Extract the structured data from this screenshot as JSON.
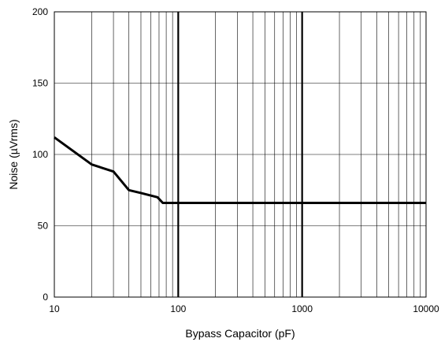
{
  "chart_data": {
    "type": "line",
    "xlabel": "Bypass Capacitor (pF)",
    "ylabel": "Noise (µVrms)",
    "x_scale": "log",
    "xlim": [
      10,
      10000
    ],
    "ylim": [
      0,
      200
    ],
    "grid": true,
    "x_tick_labels": [
      "10",
      "100",
      "1000",
      "10000"
    ],
    "y_tick_labels": [
      "0",
      "50",
      "100",
      "150",
      "200"
    ],
    "series": [
      {
        "x": [
          10,
          20,
          30,
          40,
          50,
          68,
          75,
          100,
          1000,
          10000
        ],
        "y": [
          112,
          93,
          88,
          75,
          73,
          70,
          66,
          66,
          66,
          66
        ],
        "color": "#000000"
      }
    ]
  }
}
